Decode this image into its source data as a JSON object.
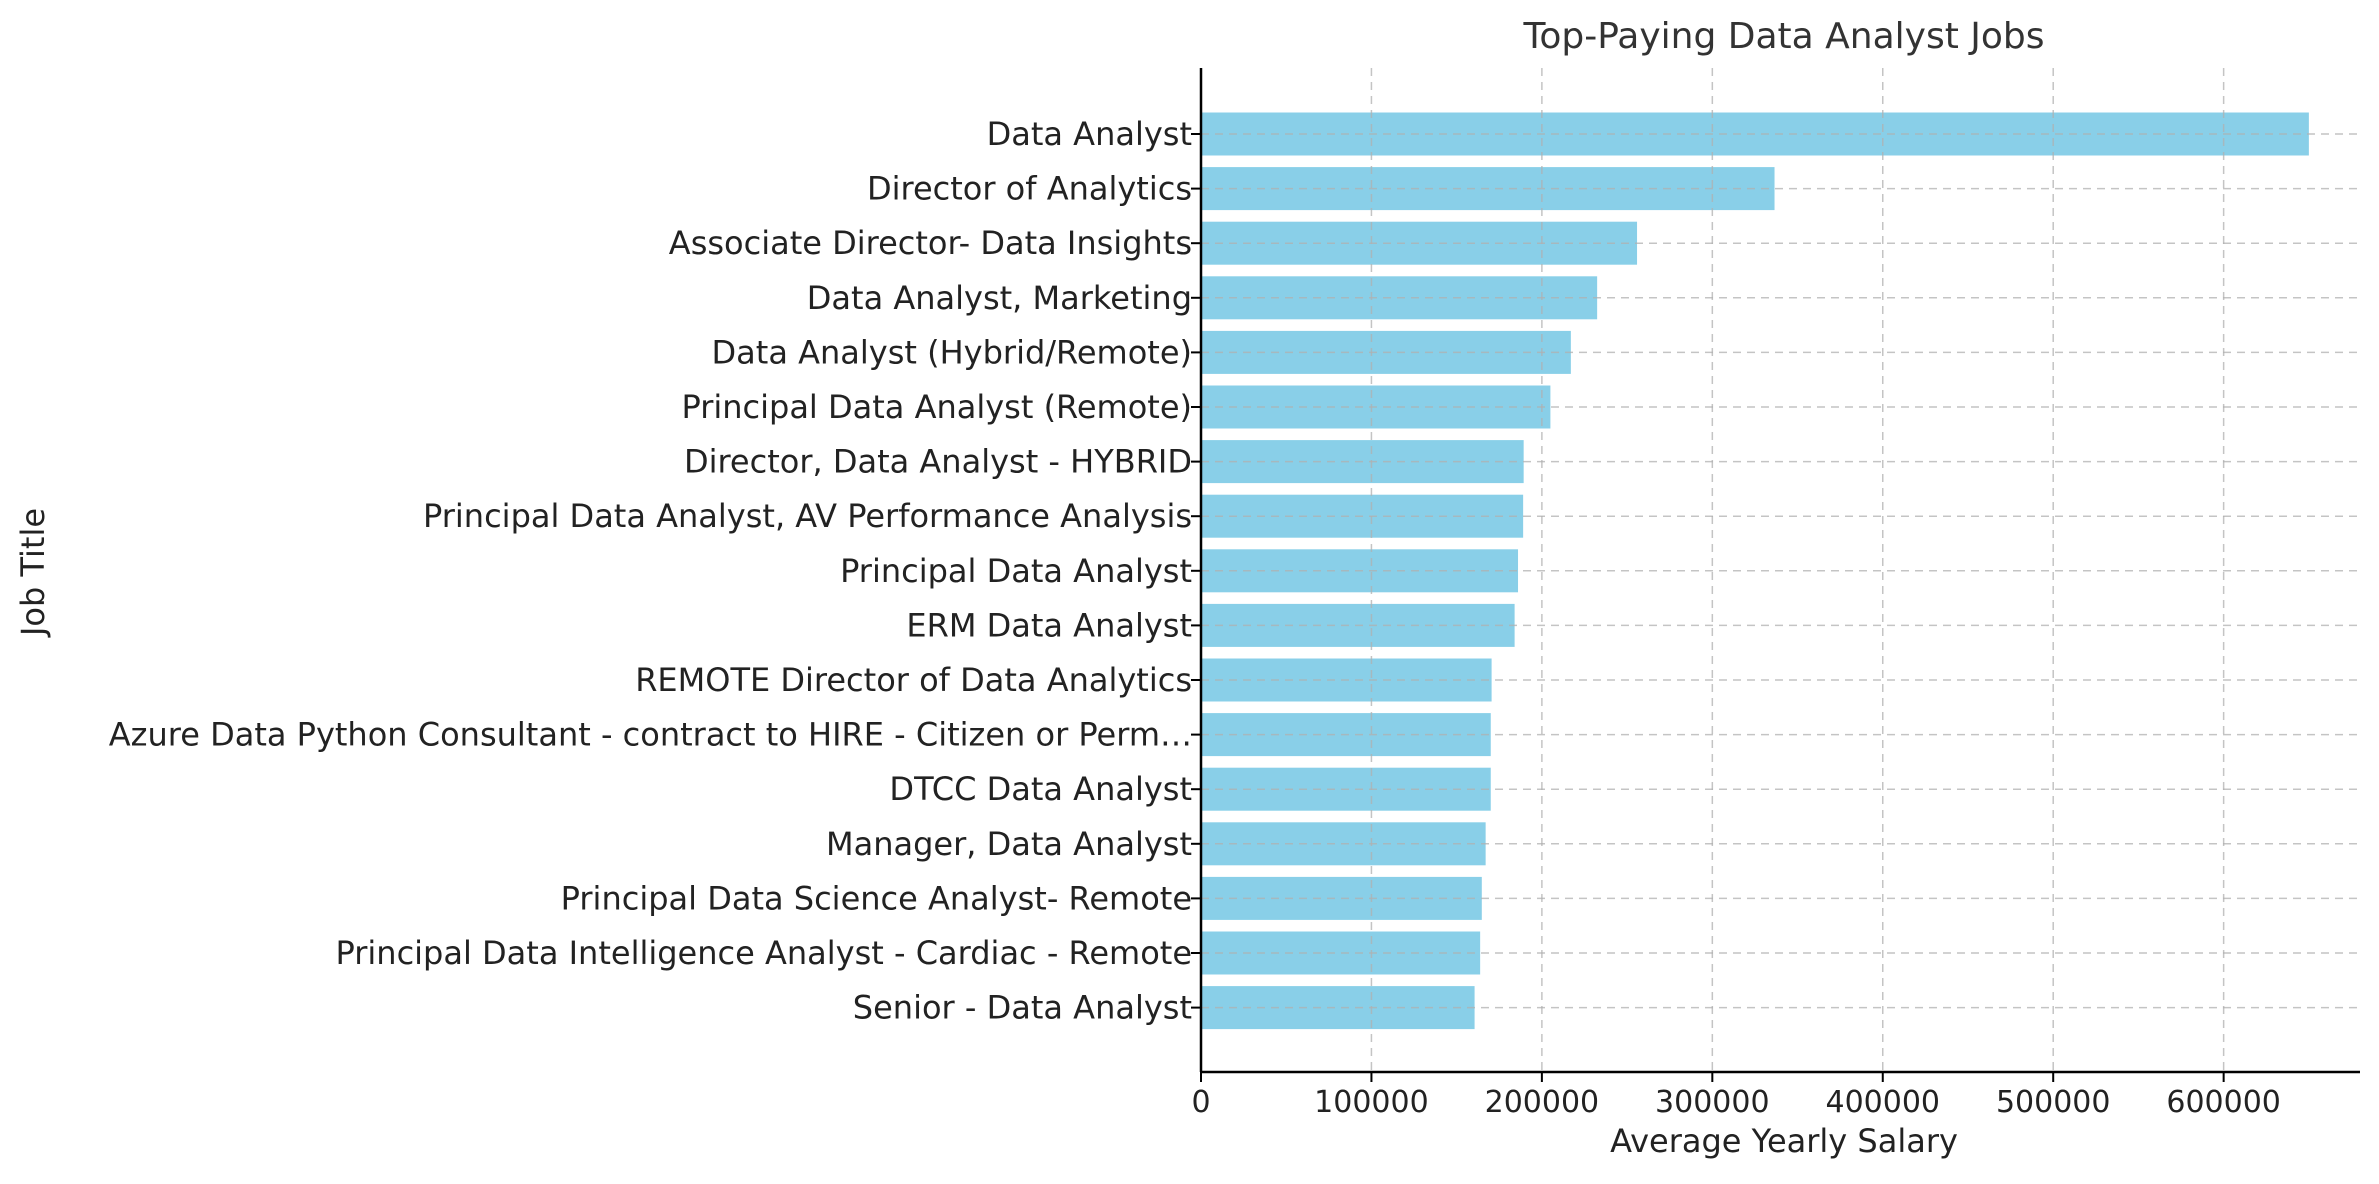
{
  "chart_data": {
    "type": "bar",
    "orientation": "horizontal",
    "title": "Top-Paying Data Analyst Jobs",
    "xlabel": "Average Yearly Salary",
    "ylabel": "Job Title",
    "xlim": [
      0,
      680000
    ],
    "xticks": [
      0,
      100000,
      200000,
      300000,
      400000,
      500000,
      600000
    ],
    "xtick_labels": [
      "0",
      "100000",
      "200000",
      "300000",
      "400000",
      "500000",
      "600000"
    ],
    "grid": true,
    "grid_style": "dashed",
    "bar_color": "#89CFE8",
    "categories": [
      "Data Analyst",
      "Director of Analytics",
      "Associate Director- Data Insights",
      "Data Analyst, Marketing",
      "Data Analyst (Hybrid/Remote)",
      "Principal Data Analyst (Remote)",
      "Director, Data Analyst - HYBRID",
      "Principal Data Analyst, AV Performance Analysis",
      "Principal Data Analyst",
      "ERM Data Analyst",
      "REMOTE Director of Data Analytics",
      "Azure Data Python Consultant - contract to HIRE - Citizen or Perm…",
      "DTCC Data Analyst",
      "Manager, Data Analyst",
      "Principal Data Science Analyst- Remote",
      "Principal Data Intelligence Analyst - Cardiac - Remote",
      "Senior - Data Analyst"
    ],
    "values": [
      650000,
      336500,
      255829.5,
      232423,
      217000,
      205000,
      189309,
      189000,
      186000,
      184000,
      170500,
      170000,
      170000,
      167000,
      164746,
      163782,
      160515
    ]
  }
}
